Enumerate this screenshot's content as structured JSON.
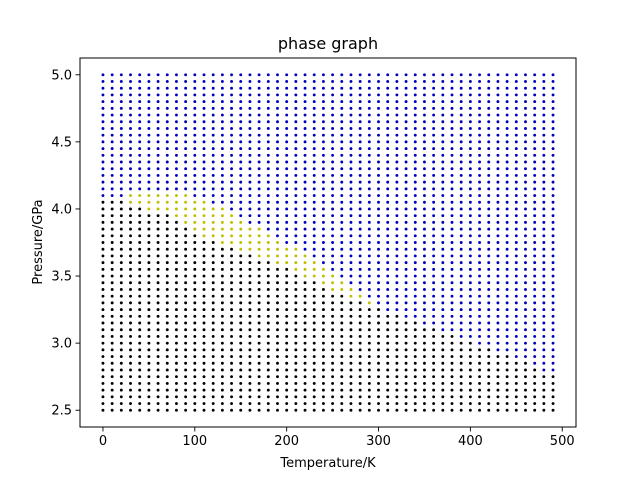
{
  "chart_data": {
    "type": "scatter",
    "title": "phase graph",
    "xlabel": "Temperature/K",
    "ylabel": "Pressure/GPa",
    "xlim": [
      -25,
      515
    ],
    "ylim": [
      2.375,
      5.125
    ],
    "x_ticks": [
      "0",
      "100",
      "200",
      "300",
      "400",
      "500"
    ],
    "y_ticks": [
      "2.5",
      "3.0",
      "3.5",
      "4.0",
      "4.5",
      "5.0"
    ],
    "grid": false,
    "legend": "none",
    "sampling": {
      "temperature": {
        "start": 0,
        "stop": 490,
        "step": 10
      },
      "pressure": {
        "start": 2.5,
        "stop": 5.0,
        "step": 0.05
      }
    },
    "series": [
      {
        "color": "#000000",
        "rule": "pressure <= black boundary"
      },
      {
        "color": "#bfbf00",
        "rule": "black boundary < pressure <= yellow boundary"
      },
      {
        "color": "#0000bf",
        "rule": "pressure > yellow boundary"
      }
    ],
    "boundaries": {
      "black": [
        [
          0,
          4.05
        ],
        [
          10,
          4.05
        ],
        [
          20,
          4.05
        ],
        [
          30,
          4.0
        ],
        [
          40,
          4.0
        ],
        [
          50,
          3.95
        ],
        [
          60,
          3.95
        ],
        [
          70,
          3.95
        ],
        [
          80,
          3.9
        ],
        [
          90,
          3.85
        ],
        [
          100,
          3.8
        ],
        [
          110,
          3.75
        ],
        [
          120,
          3.75
        ],
        [
          130,
          3.7
        ],
        [
          140,
          3.7
        ],
        [
          150,
          3.65
        ],
        [
          160,
          3.65
        ],
        [
          170,
          3.6
        ],
        [
          180,
          3.6
        ],
        [
          190,
          3.55
        ],
        [
          200,
          3.55
        ],
        [
          210,
          3.5
        ],
        [
          220,
          3.45
        ],
        [
          230,
          3.45
        ],
        [
          240,
          3.4
        ],
        [
          250,
          3.35
        ],
        [
          260,
          3.35
        ],
        [
          270,
          3.3
        ],
        [
          280,
          3.3
        ],
        [
          290,
          3.25
        ],
        [
          300,
          3.25
        ],
        [
          310,
          3.2
        ],
        [
          320,
          3.2
        ],
        [
          330,
          3.15
        ],
        [
          340,
          3.15
        ],
        [
          350,
          3.1
        ],
        [
          360,
          3.1
        ],
        [
          370,
          3.05
        ],
        [
          380,
          3.05
        ],
        [
          390,
          3.0
        ],
        [
          400,
          3.0
        ],
        [
          410,
          2.95
        ],
        [
          420,
          2.95
        ],
        [
          430,
          2.9
        ],
        [
          440,
          2.9
        ],
        [
          450,
          2.85
        ],
        [
          460,
          2.85
        ],
        [
          470,
          2.8
        ],
        [
          480,
          2.75
        ],
        [
          490,
          2.75
        ]
      ],
      "yellow": [
        [
          0,
          4.05
        ],
        [
          10,
          4.05
        ],
        [
          20,
          4.05
        ],
        [
          30,
          4.1
        ],
        [
          40,
          4.1
        ],
        [
          50,
          4.1
        ],
        [
          60,
          4.1
        ],
        [
          70,
          4.1
        ],
        [
          80,
          4.1
        ],
        [
          90,
          4.1
        ],
        [
          100,
          4.05
        ],
        [
          110,
          4.05
        ],
        [
          120,
          4.0
        ],
        [
          130,
          4.0
        ],
        [
          140,
          3.95
        ],
        [
          150,
          3.9
        ],
        [
          160,
          3.85
        ],
        [
          170,
          3.85
        ],
        [
          180,
          3.8
        ],
        [
          190,
          3.75
        ],
        [
          200,
          3.7
        ],
        [
          210,
          3.7
        ],
        [
          220,
          3.65
        ],
        [
          230,
          3.6
        ],
        [
          240,
          3.55
        ],
        [
          250,
          3.5
        ],
        [
          260,
          3.45
        ],
        [
          270,
          3.4
        ],
        [
          280,
          3.35
        ],
        [
          290,
          3.3
        ],
        [
          300,
          3.25
        ],
        [
          310,
          3.2
        ],
        [
          320,
          3.2
        ],
        [
          330,
          3.15
        ],
        [
          340,
          3.15
        ],
        [
          350,
          3.1
        ],
        [
          360,
          3.1
        ],
        [
          370,
          3.05
        ],
        [
          380,
          3.05
        ],
        [
          390,
          3.0
        ],
        [
          400,
          3.0
        ],
        [
          410,
          2.95
        ],
        [
          420,
          2.95
        ],
        [
          430,
          2.9
        ],
        [
          440,
          2.9
        ],
        [
          450,
          2.85
        ],
        [
          460,
          2.85
        ],
        [
          470,
          2.8
        ],
        [
          480,
          2.75
        ],
        [
          490,
          2.75
        ]
      ]
    }
  }
}
